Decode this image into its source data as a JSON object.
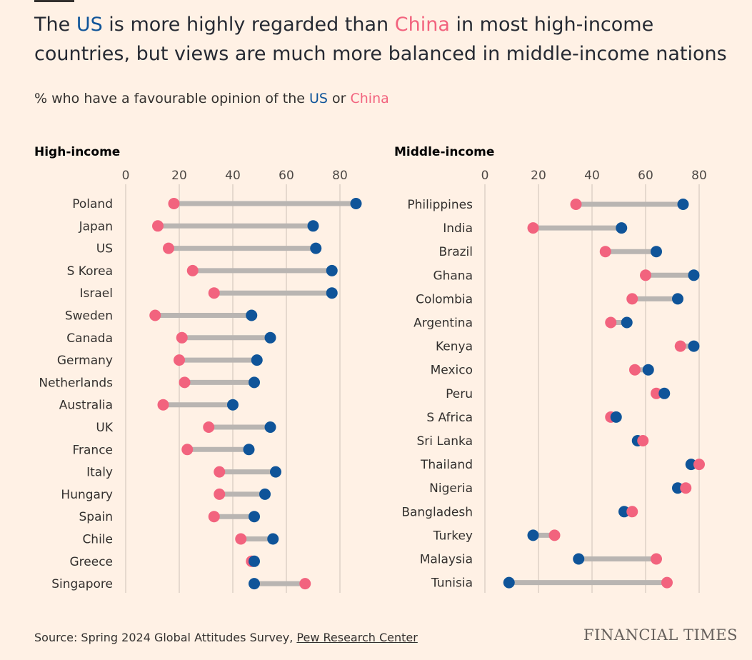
{
  "title": {
    "part1": "The ",
    "us": "US",
    "part2": " is more highly regarded than ",
    "china": "China",
    "part3": " in most high-income countries, but views are much more balanced in middle-income nations"
  },
  "subtitle": {
    "part1": "% who have a favourable opinion of the ",
    "us": "US",
    "part2": " or ",
    "china": "China"
  },
  "colors": {
    "us": "#0F5499",
    "china": "#F2637E",
    "connector": "#B9B5B2",
    "grid": "#CCC1B7"
  },
  "chart_data": [
    {
      "type": "dot-plot",
      "title": "High-income",
      "xlim": [
        0,
        86
      ],
      "ticks": [
        "0",
        "20",
        "40",
        "60",
        "80"
      ],
      "categories": [
        "Poland",
        "Japan",
        "US",
        "S Korea",
        "Israel",
        "Sweden",
        "Canada",
        "Germany",
        "Netherlands",
        "Australia",
        "UK",
        "France",
        "Italy",
        "Hungary",
        "Spain",
        "Chile",
        "Greece",
        "Singapore"
      ],
      "series": [
        {
          "name": "US",
          "values": [
            86,
            70,
            71,
            77,
            77,
            47,
            54,
            49,
            48,
            40,
            54,
            46,
            56,
            52,
            48,
            55,
            48,
            48
          ]
        },
        {
          "name": "China",
          "values": [
            18,
            12,
            16,
            25,
            33,
            11,
            21,
            20,
            22,
            14,
            31,
            23,
            35,
            35,
            33,
            43,
            47,
            67
          ]
        }
      ]
    },
    {
      "type": "dot-plot",
      "title": "Middle-income",
      "xlim": [
        0,
        86
      ],
      "ticks": [
        "0",
        "20",
        "40",
        "60",
        "80"
      ],
      "categories": [
        "Philippines",
        "India",
        "Brazil",
        "Ghana",
        "Colombia",
        "Argentina",
        "Kenya",
        "Mexico",
        "Peru",
        "S Africa",
        "Sri Lanka",
        "Thailand",
        "Nigeria",
        "Bangladesh",
        "Turkey",
        "Malaysia",
        "Tunisia"
      ],
      "series": [
        {
          "name": "US",
          "values": [
            74,
            51,
            64,
            78,
            72,
            53,
            78,
            61,
            67,
            49,
            57,
            77,
            72,
            52,
            18,
            35,
            9
          ]
        },
        {
          "name": "China",
          "values": [
            34,
            18,
            45,
            60,
            55,
            47,
            73,
            56,
            64,
            47,
            59,
            80,
            75,
            55,
            26,
            64,
            68
          ]
        }
      ]
    }
  ],
  "footer": {
    "source_prefix": "Source: Spring 2024 Global Attitudes Survey, ",
    "source_link": "Pew Research Center",
    "brand": "FINANCIAL TIMES"
  }
}
